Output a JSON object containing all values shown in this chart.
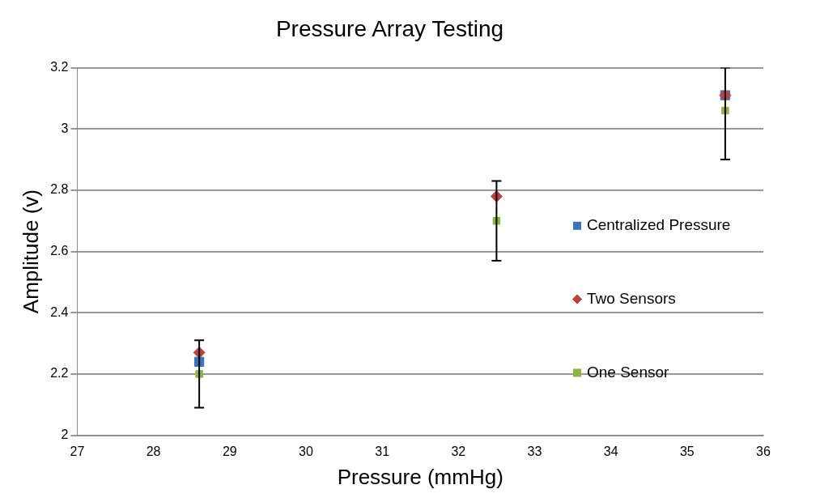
{
  "chart_data": {
    "type": "scatter",
    "title": "Pressure Array Testing",
    "xlabel": "Pressure (mmHg)",
    "ylabel": "Amplitude (v)",
    "x": [
      28.6,
      32.5,
      35.5
    ],
    "series": [
      {
        "name": "Centralized Pressure",
        "color": "#3a73b8",
        "marker": "square",
        "values": [
          2.24,
          null,
          3.11
        ]
      },
      {
        "name": "Two Sensors",
        "color": "#c0403c",
        "marker": "diamond",
        "values": [
          2.27,
          2.78,
          3.11
        ]
      },
      {
        "name": "One Sensor",
        "color": "#8db542",
        "marker": "square",
        "values": [
          2.2,
          2.7,
          3.06
        ],
        "errors": [
          [
            2.09,
            2.31
          ],
          [
            2.57,
            2.83
          ],
          [
            2.9,
            3.2
          ]
        ]
      }
    ],
    "xlim": [
      27,
      36
    ],
    "xticks": [
      27,
      28,
      29,
      30,
      31,
      32,
      33,
      34,
      35,
      36
    ],
    "ylim": [
      2,
      3.2
    ],
    "yticks": [
      2,
      2.2,
      2.4,
      2.6,
      2.8,
      3,
      3.2
    ],
    "grid": "y",
    "legend": "right"
  }
}
